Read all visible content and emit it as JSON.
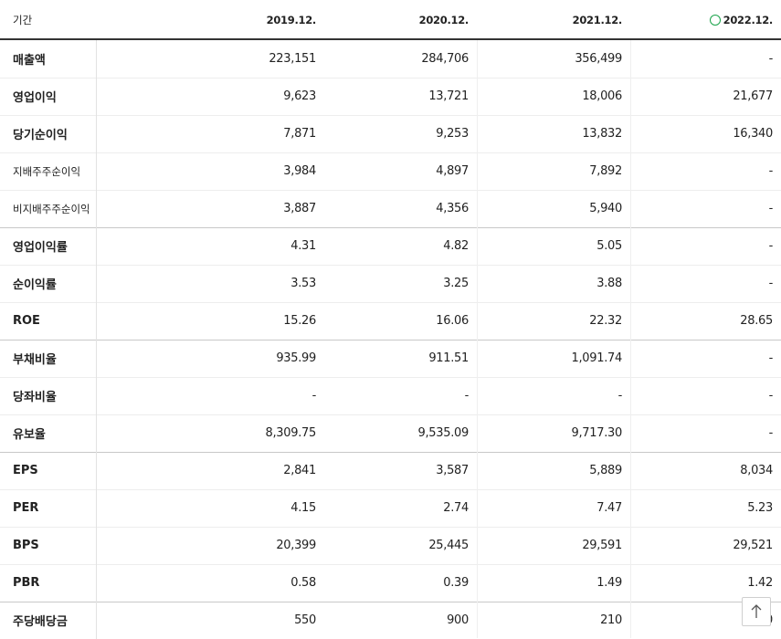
{
  "table": {
    "header": [
      "기간",
      "2019.12.",
      "2020.12.",
      "2021.12.",
      "2022.12."
    ],
    "rows": [
      [
        "매출액",
        "223,151",
        "284,706",
        "356,499",
        "-"
      ],
      [
        "영업이익",
        "9,623",
        "13,721",
        "18,006",
        "21,677"
      ],
      [
        "당기순이익",
        "7,871",
        "9,253",
        "13,832",
        "16,340"
      ],
      [
        "지배주주순이익",
        "3,984",
        "4,897",
        "7,892",
        "-"
      ],
      [
        "비지배주주순이익",
        "3,887",
        "4,356",
        "5,940",
        "-"
      ],
      [
        "영업이익률",
        "4.31",
        "4.82",
        "5.05",
        "-"
      ],
      [
        "순이익률",
        "3.53",
        "3.25",
        "3.88",
        "-"
      ],
      [
        "ROE",
        "15.26",
        "16.06",
        "22.32",
        "28.65"
      ],
      [
        "부채비율",
        "935.99",
        "911.51",
        "1,091.74",
        "-"
      ],
      [
        "당좌비율",
        "-",
        "-",
        "-",
        "-"
      ],
      [
        "유보율",
        "8,309.75",
        "9,535.09",
        "9,717.30",
        "-"
      ],
      [
        "EPS",
        "2,841",
        "3,587",
        "5,889",
        "8,034"
      ],
      [
        "PER",
        "4.15",
        "2.74",
        "7.47",
        "5.23"
      ],
      [
        "BPS",
        "20,399",
        "25,445",
        "29,591",
        "29,521"
      ],
      [
        "PBR",
        "0.58",
        "0.39",
        "1.49",
        "1.42"
      ],
      [
        "주당배당금",
        "550",
        "900",
        "210",
        "0"
      ]
    ]
  }
}
